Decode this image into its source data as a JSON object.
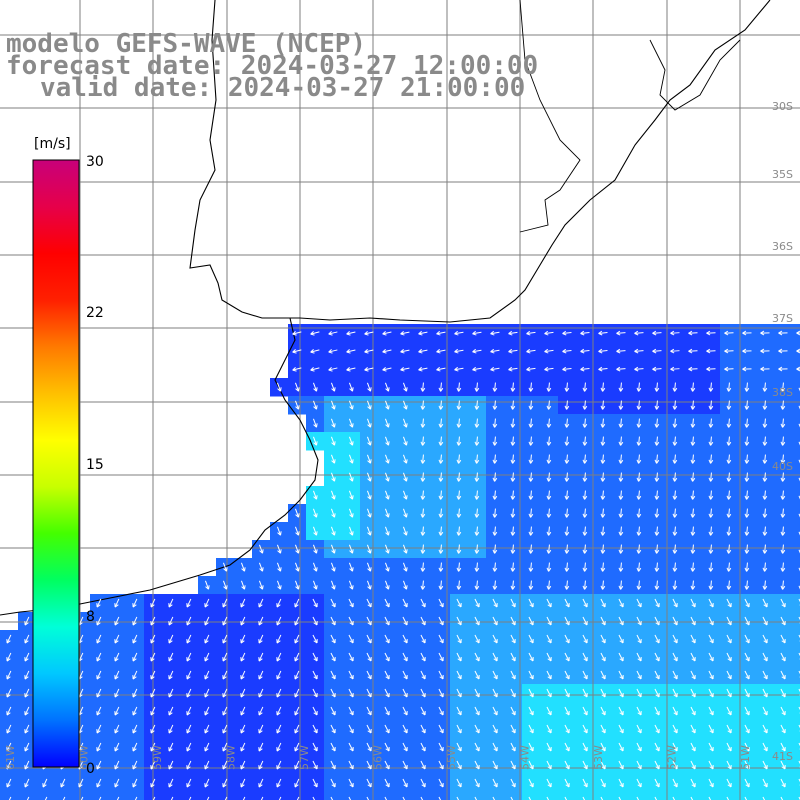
{
  "header": {
    "line1": "modelo GEFS-WAVE (NCEP)",
    "line2": "forecast date: 2024-03-27 12:00:00",
    "line3": "valid date: 2024-03-27 21:00:00"
  },
  "colorbar": {
    "unit": "[m/s]",
    "ticks": [
      "30",
      "22",
      "15",
      "8",
      "0"
    ],
    "tick_values": [
      30,
      22,
      15,
      8,
      0
    ],
    "colors": [
      "#0000ff",
      "#0072ff",
      "#00c8ff",
      "#00ffd8",
      "#00ff60",
      "#44ff00",
      "#c8ff00",
      "#ffff00",
      "#ffc000",
      "#ff7a00",
      "#ff2000",
      "#ff0000",
      "#e6004a",
      "#c8007a"
    ]
  },
  "map": {
    "lat_labels": [
      "30S",
      "35S",
      "36S",
      "37S",
      "38S",
      "40S",
      "41S"
    ],
    "lon_labels": [
      "61W",
      "60W",
      "59W",
      "58W",
      "57W",
      "56W",
      "55W",
      "54W",
      "53W",
      "52W",
      "51W"
    ],
    "ocean_colors": {
      "deep": "#1a3cff",
      "mid": "#1f6bff",
      "light": "#2aa8ff",
      "cyan": "#22e0ff"
    },
    "land_color": "#ffffff",
    "coast_color": "#000000",
    "grid_color": "#7f7f7f"
  }
}
